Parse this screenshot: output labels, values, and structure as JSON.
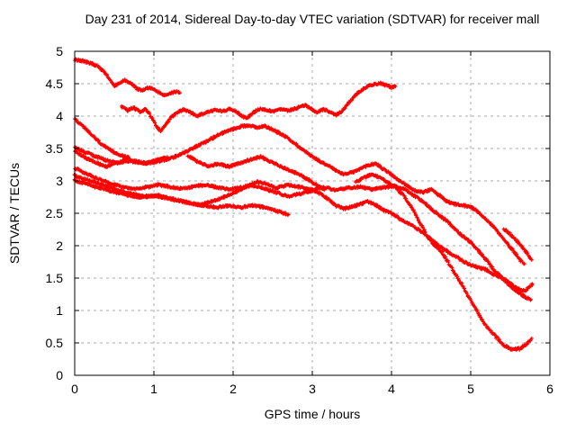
{
  "title": "Day 231 of 2014, Sidereal Day-to-day VTEC variation (SDTVAR) for receiver mall",
  "colors": {
    "marker": "#ff0000",
    "grid": "#a9a9a9",
    "axis": "#000000",
    "background": "#ffffff",
    "text": "#000000"
  },
  "chart_data": {
    "type": "scatter",
    "marker": "plus",
    "title": "Day 231 of 2014, Sidereal Day-to-day VTEC variation (SDTVAR) for receiver mall",
    "xlabel": "GPS time / hours",
    "ylabel": "SDTVAR / TECUs",
    "xlim": [
      0,
      6
    ],
    "ylim": [
      0,
      5
    ],
    "xtick_values": [
      0,
      1,
      2,
      3,
      4,
      5,
      6
    ],
    "xtick_labels": [
      "0",
      "1",
      "2",
      "3",
      "4",
      "5",
      "6"
    ],
    "ytick_values": [
      0,
      0.5,
      1,
      1.5,
      2,
      2.5,
      3,
      3.5,
      4,
      4.5,
      5
    ],
    "ytick_labels": [
      "0",
      "0.5",
      "1",
      "1.5",
      "2",
      "2.5",
      "3",
      "3.5",
      "4",
      "4.5",
      "5"
    ],
    "grid": true,
    "legend": "none",
    "series": [
      {
        "name": "trace-1",
        "points": [
          [
            0,
            4.87
          ],
          [
            0.1,
            4.85
          ],
          [
            0.2,
            4.82
          ],
          [
            0.3,
            4.76
          ],
          [
            0.38,
            4.67
          ],
          [
            0.45,
            4.56
          ],
          [
            0.5,
            4.47
          ],
          [
            0.57,
            4.51
          ],
          [
            0.63,
            4.56
          ],
          [
            0.7,
            4.51
          ],
          [
            0.78,
            4.43
          ],
          [
            0.85,
            4.39
          ],
          [
            0.92,
            4.44
          ],
          [
            1,
            4.42
          ],
          [
            1.07,
            4.36
          ],
          [
            1.13,
            4.32
          ],
          [
            1.2,
            4.35
          ],
          [
            1.28,
            4.38
          ],
          [
            1.33,
            4.36
          ]
        ]
      },
      {
        "name": "trace-2",
        "points": [
          [
            0.59,
            4.14
          ],
          [
            0.67,
            4.09
          ],
          [
            0.74,
            4.13
          ],
          [
            0.82,
            4.07
          ],
          [
            0.9,
            4.11
          ],
          [
            0.97,
            3.98
          ],
          [
            1.03,
            3.85
          ],
          [
            1.08,
            3.77
          ],
          [
            1.15,
            3.87
          ],
          [
            1.22,
            3.98
          ],
          [
            1.3,
            4.06
          ],
          [
            1.38,
            4.1
          ],
          [
            1.46,
            4.06
          ],
          [
            1.54,
            4
          ],
          [
            1.62,
            4.04
          ],
          [
            1.7,
            4.07
          ],
          [
            1.78,
            4.1
          ],
          [
            1.86,
            4.07
          ],
          [
            1.94,
            4.11
          ],
          [
            2.02,
            4.08
          ],
          [
            2.1,
            4.01
          ],
          [
            2.17,
            3.97
          ],
          [
            2.25,
            4.05
          ],
          [
            2.33,
            4.11
          ],
          [
            2.42,
            4.09
          ],
          [
            2.5,
            4.07
          ],
          [
            2.6,
            4.1
          ],
          [
            2.7,
            4.09
          ],
          [
            2.8,
            4.12
          ],
          [
            2.9,
            4.17
          ],
          [
            2.98,
            4.12
          ],
          [
            3.06,
            4.06
          ],
          [
            3.14,
            4.1
          ],
          [
            3.22,
            4.07
          ],
          [
            3.3,
            4.02
          ],
          [
            3.38,
            4.08
          ],
          [
            3.46,
            4.2
          ],
          [
            3.54,
            4.32
          ],
          [
            3.62,
            4.4
          ],
          [
            3.7,
            4.46
          ],
          [
            3.78,
            4.49
          ],
          [
            3.86,
            4.51
          ],
          [
            3.94,
            4.47
          ],
          [
            4,
            4.45
          ],
          [
            4.05,
            4.46
          ]
        ]
      },
      {
        "name": "trace-3",
        "points": [
          [
            0,
            3.95
          ],
          [
            0.08,
            3.87
          ],
          [
            0.16,
            3.78
          ],
          [
            0.24,
            3.68
          ],
          [
            0.32,
            3.59
          ],
          [
            0.4,
            3.51
          ],
          [
            0.48,
            3.45
          ],
          [
            0.56,
            3.41
          ],
          [
            0.63,
            3.38
          ],
          [
            0.68,
            3.37
          ]
        ]
      },
      {
        "name": "trace-4",
        "points": [
          [
            0,
            3.52
          ],
          [
            0.1,
            3.46
          ],
          [
            0.2,
            3.41
          ],
          [
            0.3,
            3.36
          ],
          [
            0.42,
            3.31
          ],
          [
            0.55,
            3.28
          ],
          [
            0.67,
            3.31
          ],
          [
            0.79,
            3.29
          ],
          [
            0.9,
            3.27
          ],
          [
            1,
            3.31
          ],
          [
            1.08,
            3.34
          ],
          [
            1.17,
            3.37
          ]
        ]
      },
      {
        "name": "trace-5",
        "points": [
          [
            0,
            3.46
          ],
          [
            0.12,
            3.37
          ],
          [
            0.25,
            3.29
          ],
          [
            0.4,
            3.22
          ],
          [
            0.52,
            3.27
          ],
          [
            0.65,
            3.33
          ],
          [
            0.78,
            3.3
          ],
          [
            0.9,
            3.27
          ],
          [
            1.05,
            3.3
          ],
          [
            1.2,
            3.34
          ],
          [
            1.35,
            3.42
          ],
          [
            1.5,
            3.51
          ],
          [
            1.65,
            3.6
          ],
          [
            1.8,
            3.7
          ],
          [
            1.95,
            3.78
          ],
          [
            2.1,
            3.84
          ],
          [
            2.2,
            3.86
          ],
          [
            2.3,
            3.82
          ],
          [
            2.4,
            3.85
          ],
          [
            2.5,
            3.79
          ],
          [
            2.6,
            3.73
          ],
          [
            2.7,
            3.65
          ],
          [
            2.8,
            3.56
          ],
          [
            2.9,
            3.46
          ],
          [
            3,
            3.38
          ],
          [
            3.1,
            3.3
          ],
          [
            3.2,
            3.24
          ],
          [
            3.3,
            3.16
          ],
          [
            3.4,
            3.1
          ],
          [
            3.5,
            3.13
          ],
          [
            3.6,
            3.18
          ],
          [
            3.7,
            3.24
          ],
          [
            3.8,
            3.27
          ],
          [
            3.9,
            3.18
          ],
          [
            4,
            3.1
          ],
          [
            4.1,
            3
          ],
          [
            4.2,
            2.92
          ],
          [
            4.3,
            2.85
          ],
          [
            4.4,
            2.82
          ],
          [
            4.5,
            2.87
          ],
          [
            4.6,
            2.78
          ],
          [
            4.7,
            2.68
          ],
          [
            4.8,
            2.64
          ],
          [
            4.9,
            2.62
          ],
          [
            5,
            2.6
          ],
          [
            5.1,
            2.52
          ],
          [
            5.2,
            2.4
          ],
          [
            5.3,
            2.28
          ],
          [
            5.4,
            2.12
          ],
          [
            5.5,
            1.98
          ],
          [
            5.58,
            1.86
          ],
          [
            5.64,
            1.76
          ],
          [
            5.68,
            1.72
          ]
        ]
      },
      {
        "name": "trace-6",
        "points": [
          [
            0,
            3.2
          ],
          [
            0.15,
            3.11
          ],
          [
            0.3,
            3.03
          ],
          [
            0.45,
            2.96
          ],
          [
            0.6,
            2.91
          ],
          [
            0.75,
            2.87
          ],
          [
            0.9,
            2.9
          ],
          [
            1.05,
            2.94
          ],
          [
            1.2,
            2.91
          ],
          [
            1.35,
            2.88
          ],
          [
            1.5,
            2.91
          ],
          [
            1.65,
            2.94
          ],
          [
            1.8,
            2.9
          ],
          [
            1.95,
            2.87
          ],
          [
            2.1,
            2.9
          ],
          [
            2.25,
            2.93
          ],
          [
            2.4,
            2.88
          ],
          [
            2.55,
            2.82
          ],
          [
            2.7,
            2.76
          ],
          [
            2.85,
            2.8
          ],
          [
            3,
            2.85
          ],
          [
            3.1,
            2.8
          ],
          [
            3.2,
            2.72
          ],
          [
            3.3,
            2.62
          ],
          [
            3.4,
            2.57
          ],
          [
            3.5,
            2.6
          ],
          [
            3.6,
            2.64
          ],
          [
            3.7,
            2.68
          ],
          [
            3.8,
            2.63
          ],
          [
            3.9,
            2.55
          ],
          [
            4,
            2.5
          ],
          [
            4.1,
            2.42
          ],
          [
            4.2,
            2.35
          ],
          [
            4.3,
            2.28
          ],
          [
            4.4,
            2.2
          ],
          [
            4.5,
            2.1
          ],
          [
            4.6,
            2
          ],
          [
            4.7,
            1.92
          ],
          [
            4.8,
            1.84
          ],
          [
            4.9,
            1.76
          ],
          [
            5,
            1.7
          ],
          [
            5.1,
            1.66
          ],
          [
            5.2,
            1.63
          ],
          [
            5.3,
            1.55
          ],
          [
            5.4,
            1.5
          ],
          [
            5.5,
            1.42
          ],
          [
            5.6,
            1.33
          ],
          [
            5.68,
            1.3
          ],
          [
            5.74,
            1.36
          ],
          [
            5.78,
            1.41
          ]
        ]
      },
      {
        "name": "trace-7",
        "points": [
          [
            0,
            3.08
          ],
          [
            0.15,
            3.02
          ],
          [
            0.3,
            2.96
          ],
          [
            0.45,
            2.9
          ],
          [
            0.6,
            2.84
          ],
          [
            0.75,
            2.79
          ],
          [
            0.9,
            2.75
          ],
          [
            1.05,
            2.78
          ],
          [
            1.2,
            2.73
          ],
          [
            1.35,
            2.69
          ],
          [
            1.5,
            2.65
          ],
          [
            1.65,
            2.61
          ],
          [
            1.8,
            2.59
          ],
          [
            1.95,
            2.62
          ],
          [
            2.1,
            2.59
          ],
          [
            2.25,
            2.62
          ],
          [
            2.4,
            2.59
          ],
          [
            2.52,
            2.55
          ],
          [
            2.62,
            2.51
          ],
          [
            2.7,
            2.48
          ]
        ]
      },
      {
        "name": "trace-8",
        "points": [
          [
            0,
            3.01
          ],
          [
            0.2,
            2.93
          ],
          [
            0.4,
            2.86
          ],
          [
            0.6,
            2.8
          ],
          [
            0.8,
            2.75
          ],
          [
            1,
            2.78
          ],
          [
            1.2,
            2.72
          ],
          [
            1.4,
            2.67
          ],
          [
            1.55,
            2.63
          ],
          [
            1.7,
            2.67
          ],
          [
            1.85,
            2.73
          ],
          [
            2,
            2.81
          ],
          [
            2.15,
            2.9
          ],
          [
            2.3,
            2.99
          ],
          [
            2.45,
            2.94
          ],
          [
            2.55,
            2.89
          ],
          [
            2.7,
            2.94
          ],
          [
            2.85,
            2.9
          ],
          [
            3,
            2.87
          ],
          [
            3.15,
            2.9
          ],
          [
            3.3,
            2.86
          ],
          [
            3.45,
            2.89
          ],
          [
            3.6,
            2.91
          ],
          [
            3.75,
            2.87
          ],
          [
            3.9,
            2.9
          ],
          [
            4.05,
            2.92
          ],
          [
            4.15,
            2.88
          ],
          [
            4.25,
            2.8
          ],
          [
            4.4,
            2.68
          ],
          [
            4.55,
            2.52
          ],
          [
            4.7,
            2.38
          ],
          [
            4.85,
            2.2
          ],
          [
            5,
            2.05
          ],
          [
            5.1,
            1.92
          ],
          [
            5.2,
            1.78
          ],
          [
            5.3,
            1.62
          ],
          [
            5.4,
            1.5
          ],
          [
            5.5,
            1.38
          ],
          [
            5.6,
            1.28
          ],
          [
            5.7,
            1.2
          ],
          [
            5.76,
            1.17
          ]
        ]
      },
      {
        "name": "trace-9",
        "points": [
          [
            3.55,
            2.98
          ],
          [
            3.65,
            3.05
          ],
          [
            3.75,
            3.1
          ],
          [
            3.85,
            3.05
          ],
          [
            3.95,
            2.98
          ],
          [
            4.05,
            2.9
          ],
          [
            4.15,
            2.78
          ],
          [
            4.25,
            2.6
          ],
          [
            4.35,
            2.38
          ],
          [
            4.45,
            2.15
          ],
          [
            4.55,
            2
          ],
          [
            4.65,
            1.88
          ],
          [
            4.77,
            1.63
          ],
          [
            4.9,
            1.38
          ],
          [
            5.05,
            1.05
          ],
          [
            5.18,
            0.78
          ],
          [
            5.3,
            0.62
          ],
          [
            5.42,
            0.46
          ],
          [
            5.52,
            0.4
          ],
          [
            5.62,
            0.41
          ],
          [
            5.7,
            0.48
          ],
          [
            5.77,
            0.57
          ]
        ]
      },
      {
        "name": "trace-10",
        "points": [
          [
            5.42,
            2.26
          ],
          [
            5.5,
            2.18
          ],
          [
            5.58,
            2.08
          ],
          [
            5.66,
            1.97
          ],
          [
            5.72,
            1.87
          ],
          [
            5.77,
            1.78
          ]
        ]
      },
      {
        "name": "trace-11",
        "points": [
          [
            1.43,
            3.39
          ],
          [
            1.55,
            3.3
          ],
          [
            1.68,
            3.23
          ],
          [
            1.8,
            3.26
          ],
          [
            1.95,
            3.22
          ],
          [
            2.1,
            3.28
          ],
          [
            2.25,
            3.34
          ],
          [
            2.35,
            3.37
          ],
          [
            2.5,
            3.28
          ],
          [
            2.65,
            3.2
          ],
          [
            2.8,
            3.12
          ],
          [
            2.95,
            3.02
          ],
          [
            3.05,
            2.94
          ],
          [
            3.15,
            2.86
          ]
        ]
      }
    ]
  }
}
